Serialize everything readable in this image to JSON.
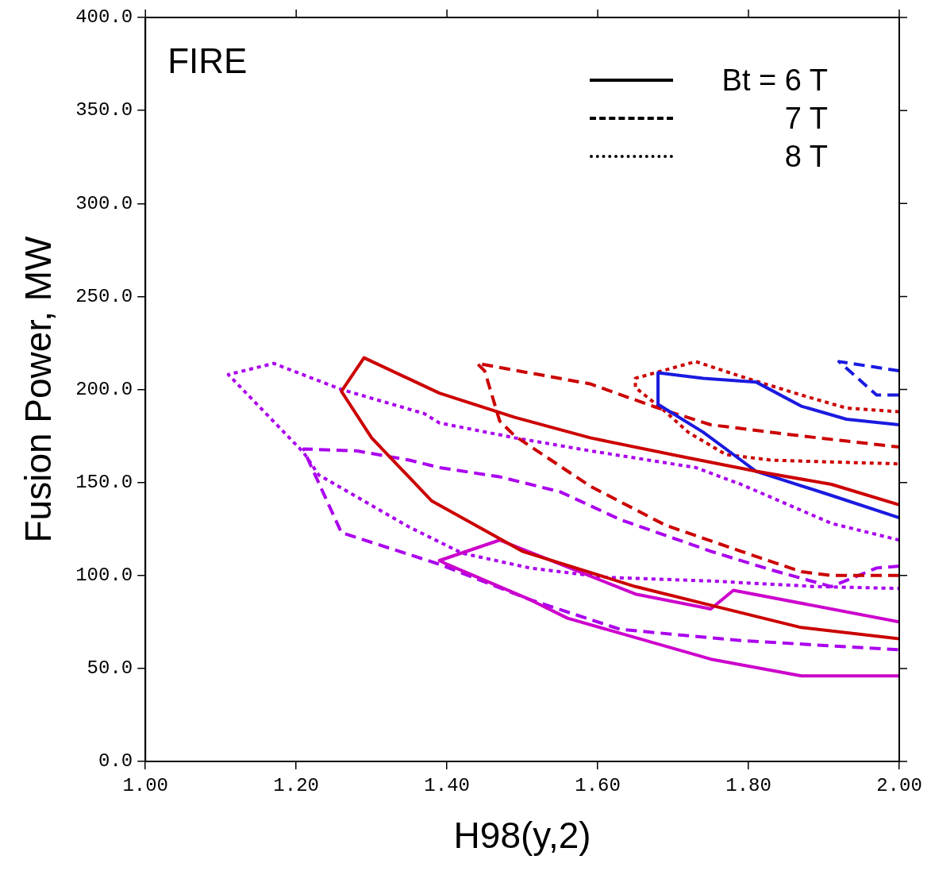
{
  "chart_data": {
    "type": "line",
    "title": "FIRE",
    "xlabel": "H98(y,2)",
    "ylabel": "Fusion Power, MW",
    "xlim": [
      1,
      2
    ],
    "ylim": [
      0,
      400
    ],
    "xticks": [
      {
        "value": 1,
        "label": "1.00"
      },
      {
        "value": 1.2,
        "label": "1.20"
      },
      {
        "value": 1.4,
        "label": "1.40"
      },
      {
        "value": 1.6,
        "label": "1.60"
      },
      {
        "value": 1.8,
        "label": "1.80"
      },
      {
        "value": 2,
        "label": "2.00"
      }
    ],
    "yticks": [
      {
        "value": 0,
        "label": "0.0"
      },
      {
        "value": 50,
        "label": "50.0"
      },
      {
        "value": 100,
        "label": "100.0"
      },
      {
        "value": 150,
        "label": "150.0"
      },
      {
        "value": 200,
        "label": "200.0"
      },
      {
        "value": 250,
        "label": "250.0"
      },
      {
        "value": 300,
        "label": "300.0"
      },
      {
        "value": 350,
        "label": "350.0"
      },
      {
        "value": 400,
        "label": "400.0"
      }
    ],
    "legend": "top right",
    "series": [
      {
        "color": "#cc0000",
        "line_style": "solid",
        "x": [
          2.0,
          1.91,
          1.81,
          1.71,
          1.59,
          1.49,
          1.39,
          1.29,
          1.26,
          1.3,
          1.38,
          1.5,
          1.65,
          1.76,
          1.87,
          2.0
        ],
        "values": [
          138,
          149,
          156,
          164,
          174,
          185,
          198,
          217,
          199,
          174,
          140,
          113,
          94,
          83,
          72,
          66
        ]
      },
      {
        "color": "#1a1ae0",
        "line_style": "solid",
        "x": [
          2.0,
          1.93,
          1.87,
          1.81,
          1.74,
          1.68,
          1.68,
          1.74,
          1.79,
          1.81,
          1.91,
          2.0
        ],
        "values": [
          181,
          184,
          191,
          204,
          206,
          209,
          192,
          177,
          162,
          156,
          143,
          131
        ]
      },
      {
        "color": "#cc00cc",
        "line_style": "solid",
        "x": [
          2.0,
          1.78,
          1.75,
          1.65,
          1.47,
          1.39,
          1.4,
          1.51,
          1.56,
          1.75,
          1.87,
          2.0
        ],
        "values": [
          75,
          92,
          82,
          90,
          119,
          108,
          106,
          87,
          77,
          55,
          46,
          46
        ]
      },
      {
        "color": "#cc0000",
        "line_style": "dashed",
        "x": [
          2.0,
          1.91,
          1.87,
          1.79,
          1.69,
          1.59,
          1.49,
          1.47,
          1.45,
          1.44,
          1.59,
          1.68,
          1.75,
          1.87,
          2.0
        ],
        "values": [
          100,
          100,
          102,
          113,
          127,
          148,
          175,
          183,
          210,
          214,
          203,
          190,
          181,
          175,
          169
        ]
      },
      {
        "color": "#1a1ae0",
        "line_style": "dashed",
        "x": [
          2.0,
          1.92,
          1.97,
          2.0
        ],
        "values": [
          210,
          215,
          197,
          197
        ]
      },
      {
        "color": "#aa00ee",
        "line_style": "dashed",
        "x": [
          2.0,
          1.97,
          1.91,
          1.83,
          1.75,
          1.63,
          1.55,
          1.47,
          1.39,
          1.35,
          1.28,
          1.21,
          1.215,
          1.26,
          1.39,
          1.51,
          1.63,
          1.79,
          2.0
        ],
        "values": [
          105,
          104,
          94,
          103,
          113,
          130,
          145,
          153,
          158,
          162,
          167,
          168,
          163,
          123,
          106,
          87,
          71,
          65,
          60
        ]
      },
      {
        "color": "#cc0000",
        "line_style": "dotted",
        "x": [
          2.0,
          1.93,
          1.87,
          1.79,
          1.73,
          1.65,
          1.65,
          1.69,
          1.72,
          1.77,
          1.83,
          1.91,
          2.0
        ],
        "values": [
          188,
          190,
          197,
          207,
          215,
          206,
          201,
          188,
          177,
          165,
          162,
          161,
          160
        ]
      },
      {
        "color": "#aa00ee",
        "line_style": "dotted",
        "x": [
          2.0,
          1.91,
          1.79,
          1.73,
          1.59,
          1.49,
          1.39,
          1.37,
          1.26,
          1.17,
          1.11,
          1.21,
          1.23,
          1.35,
          1.42,
          1.51,
          1.61,
          1.75,
          1.89,
          2.0
        ],
        "values": [
          119,
          128,
          149,
          158,
          167,
          174,
          182,
          187,
          200,
          214,
          208,
          166,
          154,
          126,
          112,
          104,
          99,
          97,
          94,
          93
        ]
      },
      {
        "name": "Bt = 6 T",
        "color": "#000000",
        "line_style": "solid"
      },
      {
        "name": "7 T",
        "color": "#000000",
        "line_style": "dashed"
      },
      {
        "name": "8 T",
        "color": "#000000",
        "line_style": "dotted"
      }
    ]
  }
}
